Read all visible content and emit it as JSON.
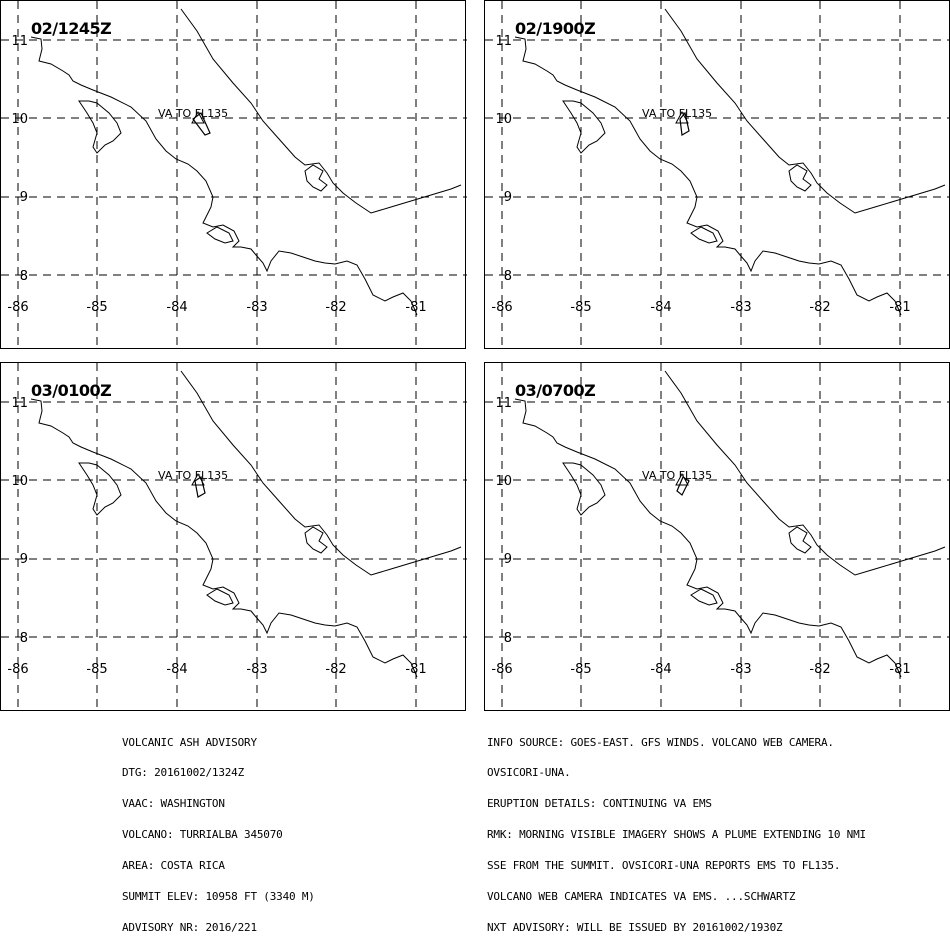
{
  "panels": [
    {
      "time": "02/1245Z",
      "label": "VA TO FL135"
    },
    {
      "time": "02/1900Z",
      "label": "VA TO FL135"
    },
    {
      "time": "03/0100Z",
      "label": "VA TO FL135"
    },
    {
      "time": "03/0700Z",
      "label": "VA TO FL135"
    }
  ],
  "axes": {
    "lat_labels": [
      "11",
      "10",
      "9",
      "8"
    ],
    "lon_labels": [
      "-86",
      "-85",
      "-84",
      "-83",
      "-82",
      "-81"
    ]
  },
  "advisory_left": [
    "VOLCANIC ASH ADVISORY",
    "DTG: 20161002/1324Z",
    "VAAC: WASHINGTON",
    "VOLCANO: TURRIALBA 345070",
    "AREA: COSTA RICA",
    "SUMMIT ELEV: 10958 FT (3340 M)",
    "ADVISORY NR: 2016/221"
  ],
  "advisory_right": [
    "INFO SOURCE: GOES-EAST. GFS WINDS. VOLCANO WEB CAMERA.",
    "OVSICORI-UNA.",
    "ERUPTION DETAILS: CONTINUING VA EMS",
    "RMK: MORNING VISIBLE IMAGERY SHOWS A PLUME EXTENDING 10 NMI",
    "SSE FROM THE SUMMIT. OVSICORI-UNA REPORTS EMS TO FL135.",
    "VOLCANO WEB CAMERA INDICATES VA EMS. ...SCHWARTZ",
    "NXT ADVISORY: WILL BE ISSUED BY 20161002/1930Z"
  ],
  "colors": {
    "line": "#000000",
    "background": "#ffffff"
  }
}
